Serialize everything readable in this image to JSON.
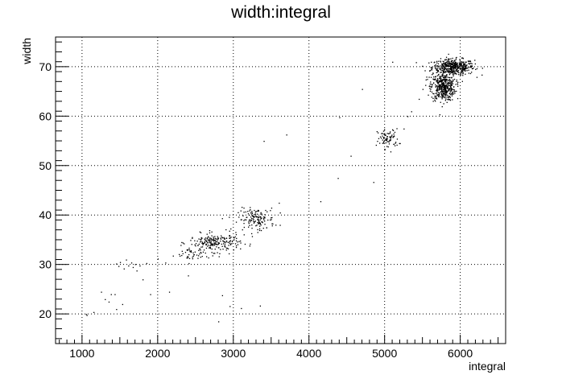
{
  "chart_data": {
    "type": "scatter",
    "title": "width:integral",
    "xlabel": "integral",
    "ylabel": "width",
    "xlim": [
      650,
      6600
    ],
    "ylim": [
      14,
      76
    ],
    "xticks": [
      1000,
      2000,
      3000,
      4000,
      5000,
      6000
    ],
    "xtick_labels": [
      "1000",
      "2000",
      "3000",
      "4000",
      "5000",
      "6000"
    ],
    "yticks": [
      20,
      30,
      40,
      50,
      60,
      70
    ],
    "ytick_labels": [
      "20",
      "30",
      "40",
      "50",
      "60",
      "70"
    ],
    "grid": true,
    "legend": "none",
    "point_color": "#000000",
    "clusters": [
      {
        "center": [
          5900,
          70
        ],
        "spread": [
          140,
          0.8
        ],
        "count": 450
      },
      {
        "center": [
          5770,
          66
        ],
        "spread": [
          80,
          1.4
        ],
        "count": 420
      },
      {
        "center": [
          5040,
          55.5
        ],
        "spread": [
          70,
          1.0
        ],
        "count": 80
      },
      {
        "center": [
          3300,
          39.2
        ],
        "spread": [
          120,
          1.1
        ],
        "count": 140
      },
      {
        "center": [
          2750,
          34.5
        ],
        "spread": [
          170,
          0.9
        ],
        "count": 220
      },
      {
        "center": [
          2450,
          32
        ],
        "spread": [
          120,
          0.8
        ],
        "count": 40
      }
    ],
    "points": [
      [
        1050,
        20
      ],
      [
        1060,
        19.8
      ],
      [
        1250,
        24.5
      ],
      [
        1300,
        23
      ],
      [
        1350,
        22.5
      ],
      [
        1380,
        24
      ],
      [
        1430,
        24
      ],
      [
        1450,
        30.2
      ],
      [
        1480,
        29.7
      ],
      [
        1500,
        30.5
      ],
      [
        1530,
        22
      ],
      [
        1550,
        29.2
      ],
      [
        1580,
        31
      ],
      [
        1610,
        29.8
      ],
      [
        1650,
        30.4
      ],
      [
        1670,
        29.5
      ],
      [
        1700,
        30.1
      ],
      [
        1720,
        28.8
      ],
      [
        1760,
        29.8
      ],
      [
        1800,
        27
      ],
      [
        1850,
        30.3
      ],
      [
        1900,
        24
      ],
      [
        2000,
        31.2
      ],
      [
        2100,
        30.4
      ],
      [
        2150,
        24.5
      ],
      [
        2200,
        31.8
      ],
      [
        2400,
        27.8
      ],
      [
        2850,
        23.8
      ],
      [
        2950,
        21.6
      ],
      [
        3100,
        21.2
      ],
      [
        3350,
        21.7
      ],
      [
        3600,
        42.5
      ],
      [
        3700,
        56.3
      ],
      [
        4150,
        42.8
      ],
      [
        4380,
        47.5
      ],
      [
        4400,
        59.8
      ],
      [
        4550,
        52
      ],
      [
        4700,
        65.5
      ],
      [
        4850,
        46.7
      ],
      [
        4900,
        55
      ],
      [
        5100,
        71
      ],
      [
        5250,
        57.5
      ],
      [
        5300,
        60
      ],
      [
        5350,
        61
      ],
      [
        5450,
        63.5
      ],
      [
        5500,
        65.5
      ],
      [
        5550,
        68
      ],
      [
        5600,
        67
      ],
      [
        3400,
        55
      ],
      [
        1450,
        21
      ],
      [
        2800,
        18.5
      ],
      [
        1150,
        20.4
      ],
      [
        2560,
        33
      ],
      [
        3500,
        41.5
      ]
    ]
  }
}
